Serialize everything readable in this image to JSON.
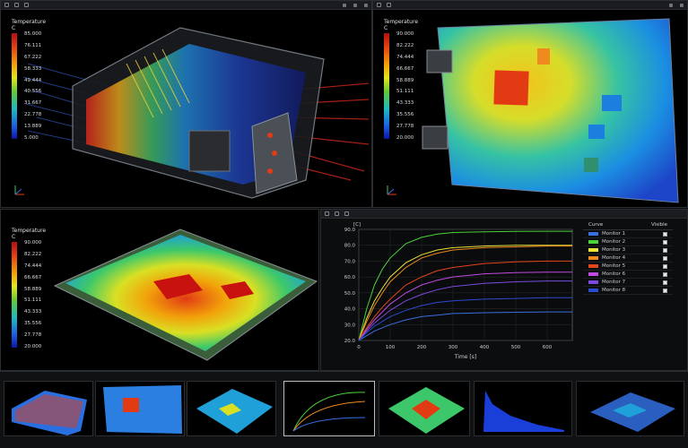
{
  "colors": {
    "thermal_hot": "#c8120f",
    "thermal_cold": "#0b16a8",
    "panel_bg": "#000000",
    "chrome_bg": "#1a1c1f"
  },
  "top_left": {
    "legend_title": "Temperature",
    "legend_unit": "C",
    "ticks": [
      "85.000",
      "76.111",
      "67.222",
      "58.333",
      "49.444",
      "40.556",
      "31.667",
      "22.778",
      "13.889",
      "5.000"
    ]
  },
  "top_right": {
    "legend_title": "Temperature",
    "legend_unit": "C",
    "ticks": [
      "90.000",
      "82.222",
      "74.444",
      "66.667",
      "58.889",
      "51.111",
      "43.333",
      "35.556",
      "27.778",
      "20.000"
    ]
  },
  "bottom_left": {
    "legend_title": "Temperature",
    "legend_unit": "C",
    "ticks": [
      "90.000",
      "82.222",
      "74.444",
      "66.667",
      "58.889",
      "51.111",
      "43.333",
      "35.556",
      "27.778",
      "20.000"
    ]
  },
  "curves_table": {
    "headers": [
      "Curve",
      "Visible"
    ],
    "rows": [
      {
        "name": "Monitor 1",
        "color": "#3a6fe0"
      },
      {
        "name": "Monitor 2",
        "color": "#4bd13a"
      },
      {
        "name": "Monitor 3",
        "color": "#e8e23a"
      },
      {
        "name": "Monitor 4",
        "color": "#f08a1e"
      },
      {
        "name": "Monitor 5",
        "color": "#e2461b"
      },
      {
        "name": "Monitor 6",
        "color": "#c04be0"
      },
      {
        "name": "Monitor 7",
        "color": "#7a4be0"
      },
      {
        "name": "Monitor 8",
        "color": "#2b4ad0"
      }
    ]
  },
  "chart_data": {
    "type": "line",
    "title": "",
    "ylabel": "[C]",
    "xlabel": "Time [s]",
    "xlim": [
      0,
      680
    ],
    "ylim": [
      20,
      90
    ],
    "xticks": [
      "0",
      "100",
      "200",
      "300",
      "400",
      "500",
      "600"
    ],
    "yticks": [
      "20.0",
      "30.0",
      "40.0",
      "50.0",
      "60.0",
      "70.0",
      "80.0",
      "90.0"
    ],
    "x": [
      0,
      25,
      50,
      75,
      100,
      150,
      200,
      250,
      300,
      400,
      500,
      600,
      680
    ],
    "series": [
      {
        "name": "Monitor 1",
        "values": [
          20,
          23,
          26,
          28,
          30,
          33,
          35,
          36,
          37,
          37.5,
          37.8,
          38,
          38
        ],
        "color": "#3a6fe0"
      },
      {
        "name": "Monitor 2",
        "values": [
          20,
          40,
          55,
          65,
          72,
          81,
          85,
          87,
          88,
          88.5,
          88.7,
          88.8,
          88.8
        ],
        "color": "#4bd13a"
      },
      {
        "name": "Monitor 3",
        "values": [
          20,
          34,
          45,
          53,
          60,
          69,
          74,
          77,
          78.5,
          79.5,
          80,
          80,
          80
        ],
        "color": "#e8e23a"
      },
      {
        "name": "Monitor 4",
        "values": [
          20,
          32,
          42,
          50,
          57,
          66,
          72,
          75,
          77,
          78.5,
          79,
          79.5,
          79.5
        ],
        "color": "#f08a1e"
      },
      {
        "name": "Monitor 5",
        "values": [
          20,
          28,
          35,
          41,
          46,
          55,
          60,
          64,
          66,
          68.5,
          69.5,
          70,
          70
        ],
        "color": "#e2461b"
      },
      {
        "name": "Monitor 6",
        "values": [
          20,
          27,
          33,
          38,
          43,
          50,
          55,
          58,
          60,
          62,
          62.8,
          63,
          63
        ],
        "color": "#c04be0"
      },
      {
        "name": "Monitor 7",
        "values": [
          20,
          26,
          31,
          35,
          39,
          45,
          49,
          52,
          54,
          56,
          57,
          57.5,
          57.5
        ],
        "color": "#7a4be0"
      },
      {
        "name": "Monitor 8",
        "values": [
          20,
          25,
          29,
          32,
          35,
          39,
          42,
          44,
          45,
          46,
          46.5,
          47,
          47
        ],
        "color": "#2b4ad0"
      }
    ]
  }
}
